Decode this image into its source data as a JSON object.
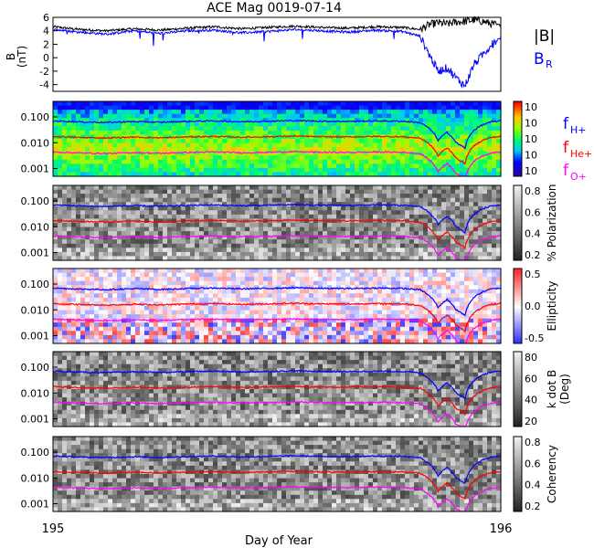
{
  "chart_data": {
    "type": "line",
    "title": "ACE Mag 0019-07-14",
    "xlabel": "Day of Year",
    "xlim": [
      195,
      196
    ],
    "x_ticks": [
      "195",
      "196"
    ],
    "top_panel": {
      "ylabel": "B",
      "yunit": "(nT)",
      "ylim": [
        -5,
        6
      ],
      "y_ticks": [
        "6",
        "4",
        "2",
        "0",
        "-2",
        "-4"
      ],
      "legend": {
        "b_total": "|B|",
        "b_r": "B",
        "b_r_sub": "R"
      },
      "series": [
        {
          "key": "b_total",
          "color": "#000000",
          "x": [
            195.0,
            195.06,
            195.12,
            195.18,
            195.24,
            195.3,
            195.36,
            195.42,
            195.48,
            195.54,
            195.6,
            195.66,
            195.72,
            195.78,
            195.82,
            195.84,
            195.86,
            195.88,
            195.9,
            195.92,
            195.94,
            195.96,
            195.98,
            196.0
          ],
          "values": [
            4.6,
            4.2,
            4.0,
            4.3,
            4.1,
            4.4,
            4.6,
            4.3,
            4.5,
            4.7,
            4.5,
            4.4,
            4.6,
            4.5,
            4.2,
            4.9,
            5.2,
            5.0,
            5.3,
            5.4,
            5.6,
            5.4,
            5.0,
            4.8
          ]
        },
        {
          "key": "b_r",
          "color": "#0000ff",
          "x": [
            195.0,
            195.06,
            195.12,
            195.18,
            195.24,
            195.3,
            195.36,
            195.42,
            195.48,
            195.54,
            195.6,
            195.66,
            195.72,
            195.78,
            195.82,
            195.84,
            195.86,
            195.88,
            195.9,
            195.92,
            195.94,
            195.96,
            195.98,
            196.0
          ],
          "values": [
            4.2,
            3.8,
            3.5,
            4.0,
            3.6,
            4.0,
            4.1,
            3.7,
            3.9,
            4.2,
            4.0,
            3.8,
            4.1,
            3.9,
            3.2,
            0.5,
            -2.0,
            -1.5,
            -3.0,
            -4.2,
            -1.0,
            0.5,
            2.0,
            3.0
          ]
        }
      ]
    },
    "spectral_panels": [
      {
        "key": "power",
        "colorbar_label": "",
        "cbar_ticks": [
          "10",
          "10",
          "10",
          "10",
          "10"
        ],
        "colormap": "rainbow"
      },
      {
        "key": "polarization",
        "colorbar_label": "% Polarization",
        "cbar_ticks": [
          "0.8",
          "0.6",
          "0.4",
          "0.2"
        ],
        "colormap": "gray"
      },
      {
        "key": "ellipticity",
        "colorbar_label": "Ellipticity",
        "cbar_ticks": [
          "0.5",
          "0.0",
          "-0.5"
        ],
        "colormap": "bwr"
      },
      {
        "key": "kdotb",
        "colorbar_label": "k dot B",
        "colorbar_label2": "(Deg)",
        "cbar_ticks": [
          "80",
          "60",
          "40",
          "20"
        ],
        "colormap": "gray"
      },
      {
        "key": "coherency",
        "colorbar_label": "Coherency",
        "cbar_ticks": [
          "0.8",
          "0.6",
          "0.4",
          "0.2"
        ],
        "colormap": "gray"
      }
    ],
    "spectral_ylim": [
      0.0005,
      0.4
    ],
    "spectral_y_ticks": [
      "0.100",
      "0.010",
      "0.001"
    ],
    "gyrofrequency_legend": [
      {
        "key": "fh",
        "label": "f",
        "sub": "H+",
        "color": "#0000ff"
      },
      {
        "key": "fhe",
        "label": "f",
        "sub": "He+",
        "color": "#ff0000"
      },
      {
        "key": "fo",
        "label": "f",
        "sub": "O+",
        "color": "#ff00ff"
      }
    ],
    "gyrofrequency_ratio": {
      "fh": 1.0,
      "fhe": 0.25,
      "fo": 0.0625
    },
    "fh_series": {
      "x": [
        195.0,
        195.06,
        195.12,
        195.18,
        195.24,
        195.3,
        195.36,
        195.42,
        195.48,
        195.54,
        195.6,
        195.66,
        195.72,
        195.78,
        195.82,
        195.84,
        195.86,
        195.88,
        195.9,
        195.92,
        195.94,
        195.96,
        195.98,
        196.0
      ],
      "values": [
        0.07,
        0.064,
        0.061,
        0.066,
        0.062,
        0.067,
        0.07,
        0.065,
        0.068,
        0.072,
        0.068,
        0.067,
        0.07,
        0.068,
        0.06,
        0.035,
        0.012,
        0.025,
        0.01,
        0.006,
        0.03,
        0.05,
        0.065,
        0.07
      ]
    }
  }
}
